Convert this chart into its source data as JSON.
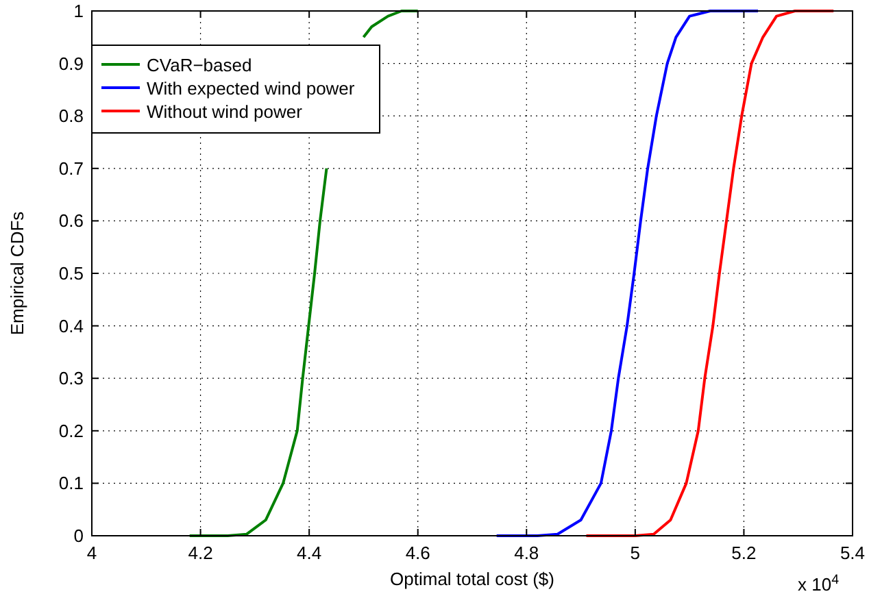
{
  "chart_data": {
    "type": "line",
    "xlabel": "Optimal total cost ($)",
    "ylabel": "Empirical CDFs",
    "annotations": [
      "x 10$^{4}$"
    ],
    "series": [
      {
        "name": "CVaR−based",
        "color": "#008000",
        "x": [
          4.18,
          4.25,
          4.285,
          4.32,
          4.352,
          4.378,
          4.388,
          4.399,
          4.41,
          4.42,
          4.432,
          4.449,
          4.468,
          4.5,
          4.515,
          4.545,
          4.57,
          4.6
        ],
        "values": [
          0,
          0,
          0.003,
          0.03,
          0.1,
          0.2,
          0.3,
          0.4,
          0.5,
          0.6,
          0.7,
          null,
          null,
          0.95,
          0.97,
          0.99,
          1,
          1
        ]
      },
      {
        "name": "With expected wind power",
        "color": "#0000ff",
        "x": [
          4.745,
          4.82,
          4.857,
          4.9,
          4.937,
          4.956,
          4.969,
          4.985,
          4.998,
          5.01,
          5.023,
          5.039,
          5.059,
          5.075,
          5.1,
          5.138,
          5.226
        ],
        "values": [
          0,
          0,
          0.003,
          0.03,
          0.1,
          0.2,
          0.3,
          0.4,
          0.5,
          0.6,
          0.7,
          0.8,
          0.9,
          0.95,
          0.99,
          1,
          1
        ]
      },
      {
        "name": "Without wind power",
        "color": "#ff0000",
        "x": [
          4.91,
          5.0,
          5.034,
          5.065,
          5.094,
          5.116,
          5.128,
          5.143,
          5.155,
          5.168,
          5.181,
          5.196,
          5.214,
          5.235,
          5.26,
          5.294,
          5.365
        ],
        "values": [
          0,
          0,
          0.003,
          0.03,
          0.1,
          0.2,
          0.3,
          0.4,
          0.5,
          0.6,
          0.7,
          0.8,
          0.9,
          0.95,
          0.99,
          1,
          1
        ]
      }
    ],
    "xlim": [
      4,
      5.4
    ],
    "xticks": [
      4,
      4.2,
      4.4,
      4.6,
      4.8,
      5,
      5.2,
      5.4
    ],
    "ylim": [
      0,
      1
    ],
    "yticks": [
      0,
      0.1,
      0.2,
      0.3,
      0.4,
      0.5,
      0.6,
      0.7,
      0.8,
      0.9,
      1
    ],
    "grid": true,
    "legend": "top left",
    "line_style": "solid",
    "marker": "none"
  }
}
